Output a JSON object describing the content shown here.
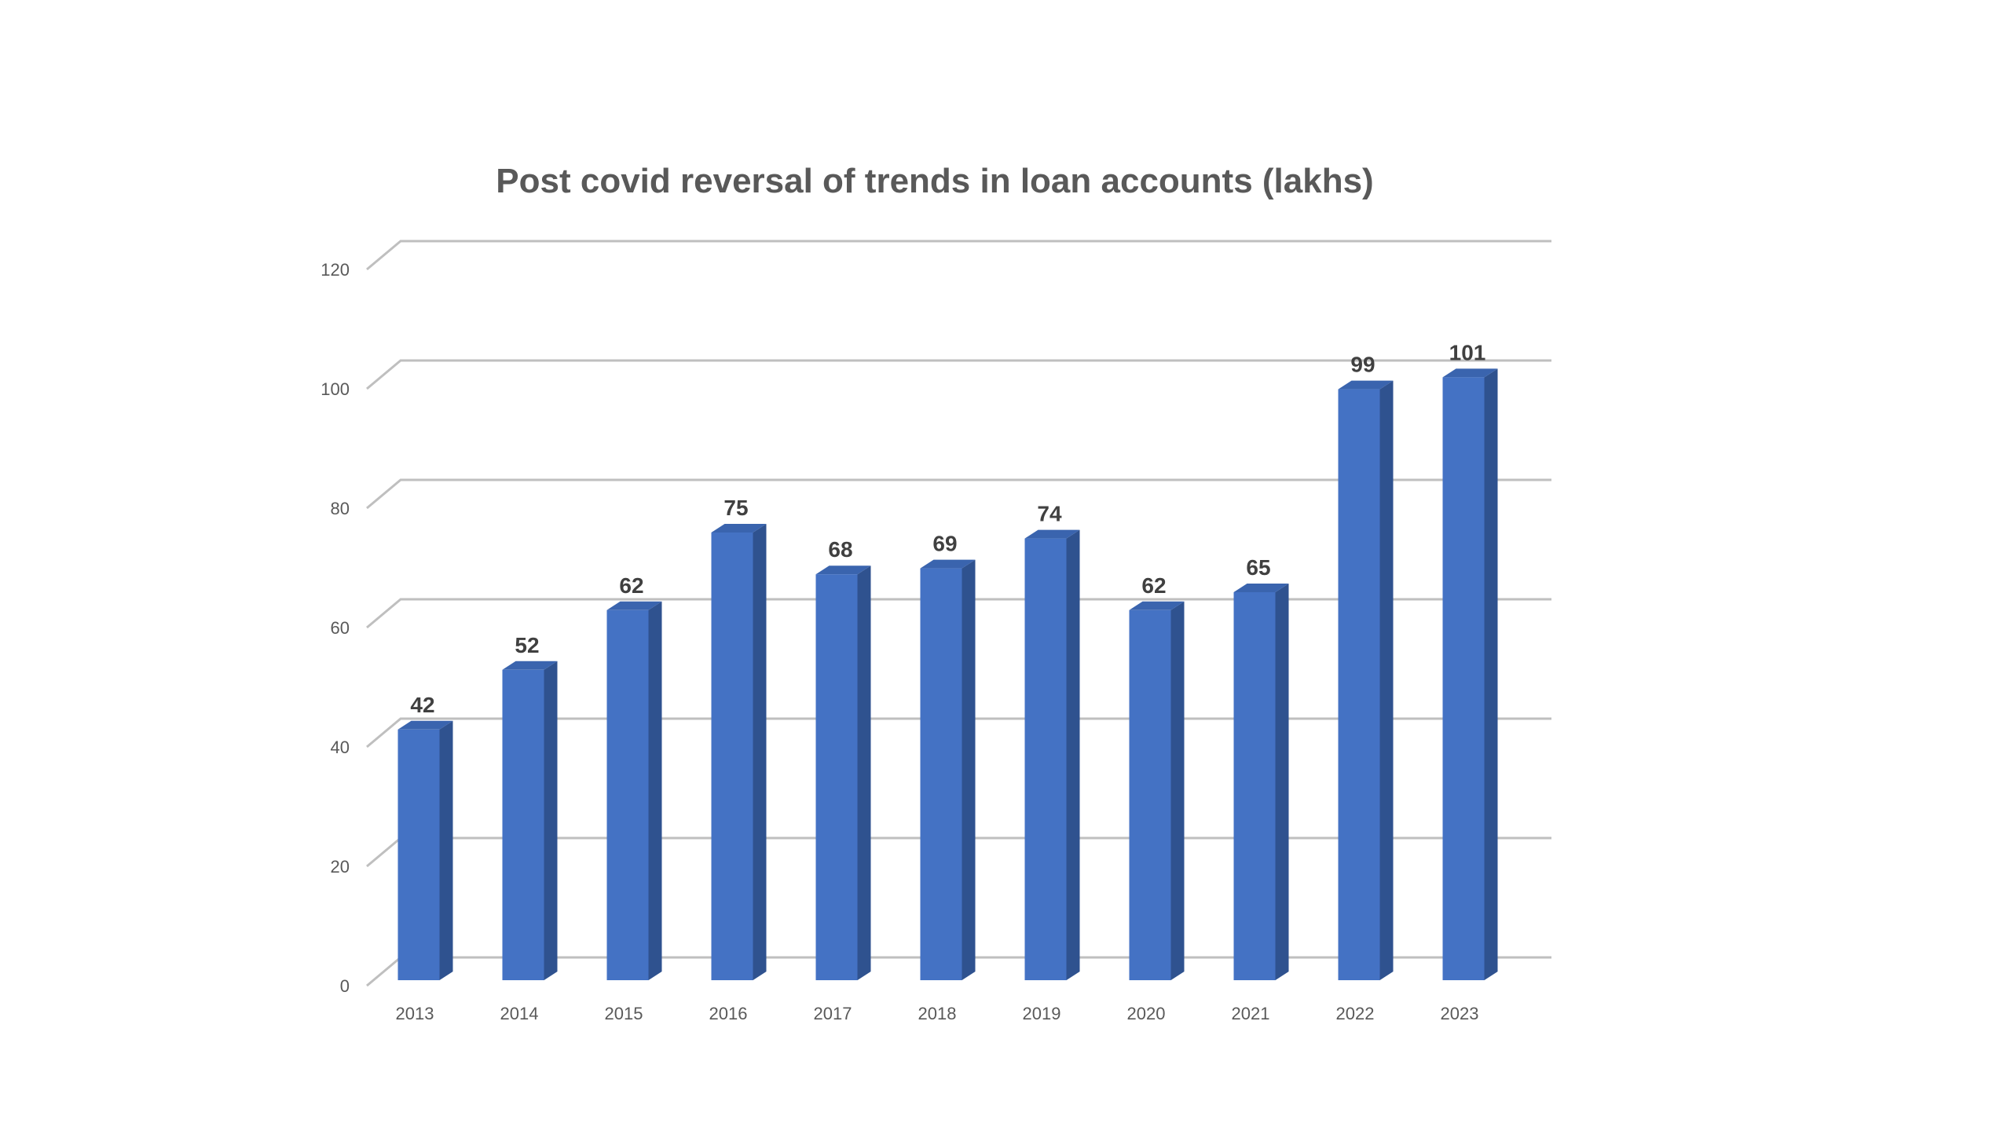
{
  "chart_data": {
    "type": "bar",
    "title": "Post covid reversal of trends in loan accounts (lakhs)",
    "xlabel": "",
    "ylabel": "",
    "categories": [
      "2013",
      "2014",
      "2015",
      "2016",
      "2017",
      "2018",
      "2019",
      "2020",
      "2021",
      "2022",
      "2023"
    ],
    "values": [
      42,
      52,
      62,
      75,
      68,
      69,
      74,
      62,
      65,
      99,
      101
    ],
    "ylim": [
      0,
      120
    ],
    "yticks": [
      "0",
      "20",
      "40",
      "60",
      "80",
      "100",
      "120"
    ],
    "data_labels": [
      "42",
      "52",
      "62",
      "75",
      "68",
      "69",
      "74",
      "62",
      "65",
      "99",
      "101"
    ],
    "grid": true,
    "legend": "none",
    "style": "3d-column",
    "colors": {
      "bar_front": "#4472C4",
      "bar_side": "#2F528F",
      "bar_top": "#3A64AE",
      "gridline": "#BFBFBF",
      "tick_text": "#595959",
      "data_label": "#404040"
    }
  }
}
